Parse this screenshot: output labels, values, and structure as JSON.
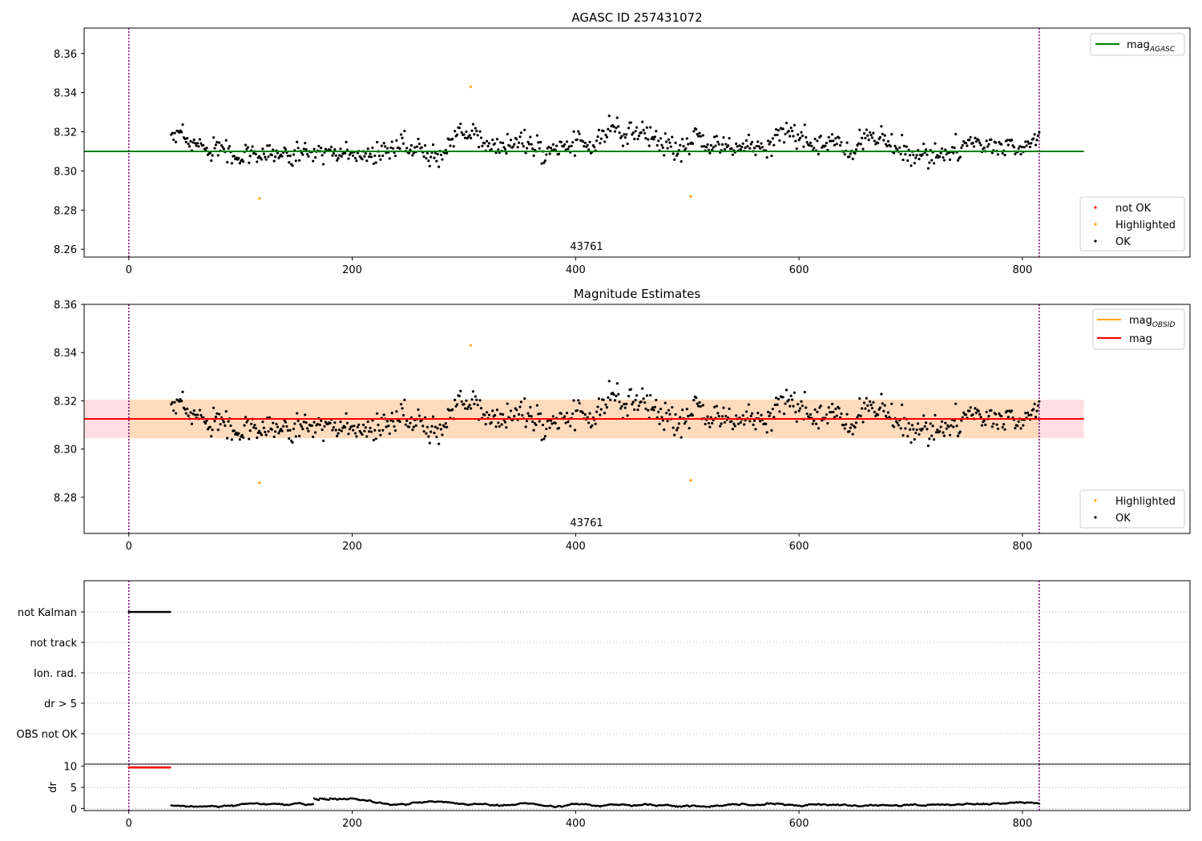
{
  "colors": {
    "ok": "#000000",
    "not_ok": "#ff0000",
    "highlighted": "#ffa500",
    "mag_agasc_line": "#008000",
    "mag_line": "#ff0000",
    "mag_obsid_line": "#ffa500",
    "obs_boundary": "#800080",
    "band_outer": "#ffc0cb",
    "band_inner": "#ffdab9"
  },
  "chart_data": [
    {
      "type": "scatter",
      "title": "AGASC ID 257431072",
      "xlim": [
        -40,
        950
      ],
      "ylim": [
        8.256,
        8.373
      ],
      "xticks": [
        "0",
        "200",
        "400",
        "600",
        "800"
      ],
      "yticks": [
        "8.26",
        "8.28",
        "8.30",
        "8.32",
        "8.34",
        "8.36"
      ],
      "obs_label": "43761",
      "obs_boundaries": [
        0,
        815
      ],
      "mag_agasc": 8.31,
      "line_range": [
        -40,
        855
      ],
      "legend_lines": [
        {
          "name": "mag",
          "sub": "AGASC",
          "color": "#008000"
        }
      ],
      "legend_points": [
        {
          "name": "not OK",
          "color": "#ff0000"
        },
        {
          "name": "Highlighted",
          "color": "#ffa500"
        },
        {
          "name": "OK",
          "color": "#000000"
        }
      ],
      "series": [
        {
          "name": "OK",
          "generator": {
            "x_start": 38,
            "x_end": 815,
            "count": 760,
            "seed": 7
          }
        },
        {
          "name": "Highlighted",
          "points": [
            [
              117,
              8.286
            ],
            [
              306,
              8.343
            ],
            [
              503,
              8.287
            ]
          ]
        }
      ]
    },
    {
      "type": "scatter",
      "title": "Magnitude Estimates",
      "xlim": [
        -40,
        950
      ],
      "ylim": [
        8.265,
        8.36
      ],
      "xticks": [
        "0",
        "200",
        "400",
        "600",
        "800"
      ],
      "yticks": [
        "8.28",
        "8.30",
        "8.32",
        "8.34",
        "8.36"
      ],
      "obs_label": "43761",
      "obs_boundaries": [
        0,
        815
      ],
      "mag": 8.3125,
      "mag_obsid": 8.3125,
      "band_outer": [
        8.3045,
        8.3205
      ],
      "band_inner": [
        8.3045,
        8.3205
      ],
      "line_range": [
        -40,
        855
      ],
      "legend_lines": [
        {
          "name": "mag",
          "sub": "OBSID",
          "color": "#ffa500"
        },
        {
          "name": "mag",
          "sub": "",
          "color": "#ff0000"
        }
      ],
      "legend_points": [
        {
          "name": "Highlighted",
          "color": "#ffa500"
        },
        {
          "name": "OK",
          "color": "#000000"
        }
      ]
    },
    {
      "type": "scatter",
      "title": "",
      "xlim": [
        -40,
        950
      ],
      "flag_labels": [
        "not Kalman",
        "not track",
        "Ion. rad.",
        "dr > 5",
        "OBS not OK"
      ],
      "flag_points": {
        "row": "not Kalman",
        "x_start": 0,
        "x_end": 37,
        "count": 38
      },
      "obs_boundaries": [
        0,
        815
      ]
    },
    {
      "type": "scatter",
      "title": "",
      "xlim": [
        -40,
        950
      ],
      "ylim": [
        -0.5,
        10.5
      ],
      "yticks": [
        "0",
        "5",
        "10"
      ],
      "xticks": [
        "0",
        "200",
        "400",
        "600",
        "800"
      ],
      "ylabel": "dr",
      "obs_boundaries": [
        0,
        815
      ],
      "red_points": {
        "x_start": 0,
        "x_end": 37,
        "count": 38,
        "value": 9.7
      }
    }
  ]
}
